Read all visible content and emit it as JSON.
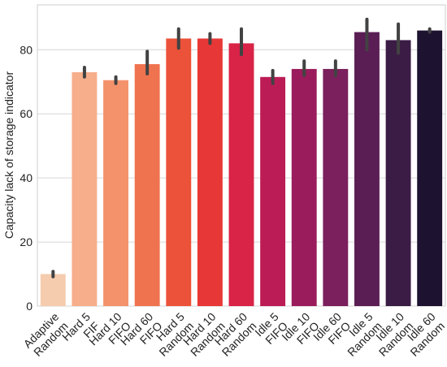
{
  "chart_data": {
    "type": "bar",
    "title": "",
    "xlabel": "",
    "ylabel": "Capacity lack of storage indicator",
    "ylim": [
      0,
      94
    ],
    "yticks": [
      0,
      20,
      40,
      60,
      80
    ],
    "grid": true,
    "grid_axis": "y",
    "legend": "none",
    "categories": [
      [
        "Adaptive",
        "Random"
      ],
      [
        "Hard 5",
        "FIF"
      ],
      [
        "Hard 10",
        "FIFO"
      ],
      [
        "Hard 60",
        "FIFO"
      ],
      [
        "Hard 5",
        "Random"
      ],
      [
        "Hard 10",
        "Random"
      ],
      [
        "Hard 60",
        "Random"
      ],
      [
        "Idle 5",
        "FIFO"
      ],
      [
        "Idle 10",
        "FIFO"
      ],
      [
        "Idle 60",
        "FIFO"
      ],
      [
        "Idle 5",
        "Random"
      ],
      [
        "Idle 10",
        "Random"
      ],
      [
        "Idle 60",
        "Random"
      ]
    ],
    "values": [
      10,
      73,
      70.5,
      75.5,
      83.5,
      83.5,
      82,
      71.5,
      74,
      74,
      85.5,
      83,
      86
    ],
    "error_low": [
      9.2,
      71.5,
      69.5,
      72.5,
      80.5,
      82,
      78.5,
      69.5,
      72,
      72,
      80,
      79,
      85.5
    ],
    "error_high": [
      10.8,
      74.5,
      71.5,
      79.5,
      86.5,
      85,
      86.5,
      73.5,
      76.5,
      76.5,
      89.5,
      88,
      86.5
    ],
    "colors": [
      "#f5ccae",
      "#f6ae8b",
      "#f3926b",
      "#f0734f",
      "#ec5239",
      "#e73837",
      "#d92347",
      "#bb1c55",
      "#9a1c5c",
      "#7b1f5d",
      "#5a1e55",
      "#3b1c45",
      "#1d1230"
    ]
  }
}
